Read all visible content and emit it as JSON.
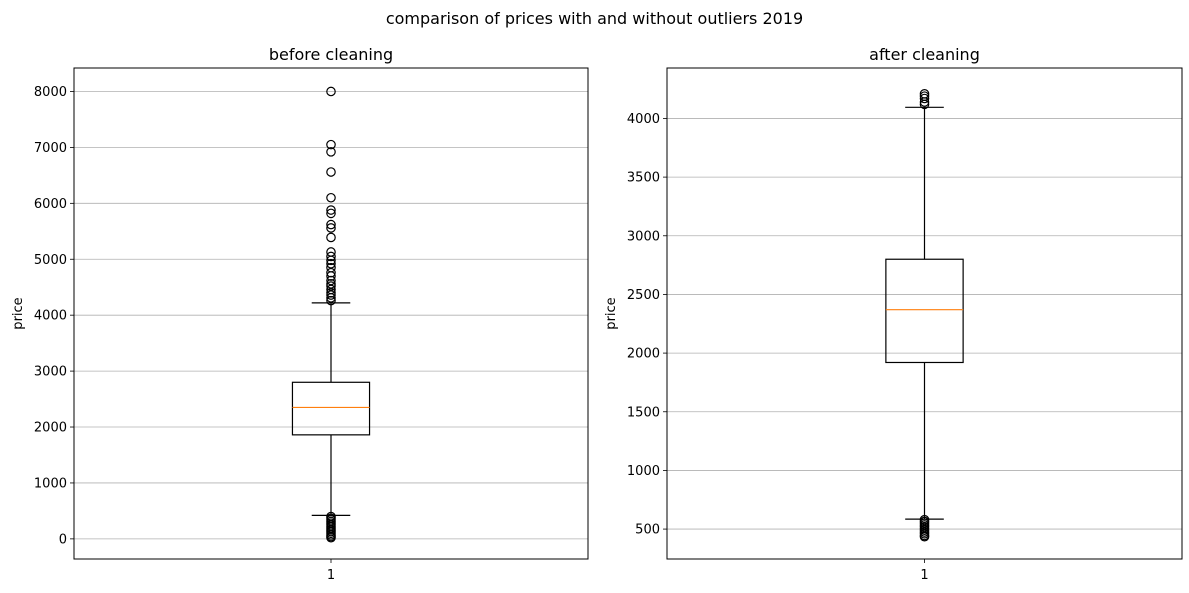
{
  "figure": {
    "suptitle": "comparison of prices with and without outliers 2019"
  },
  "colors": {
    "grid": "#b0b0b0",
    "box": "#000000",
    "median": "#ff7f0e",
    "outlier_edge": "#000000"
  },
  "chart_data": [
    {
      "type": "box",
      "title": "before cleaning",
      "ylabel": "price",
      "xlabel": "",
      "categories": [
        "1"
      ],
      "ylim": [
        -360,
        8420
      ],
      "yticks": [
        0,
        1000,
        2000,
        3000,
        4000,
        5000,
        6000,
        7000,
        8000
      ],
      "ytick_labels": [
        "0",
        "1000",
        "2000",
        "3000",
        "4000",
        "5000",
        "6000",
        "7000",
        "8000"
      ],
      "grid": "y",
      "box": {
        "whisker_low": 420,
        "q1": 1860,
        "median": 2350,
        "q3": 2800,
        "whisker_high": 4220
      },
      "outliers": [
        8000,
        7050,
        6920,
        6560,
        6100,
        5880,
        5820,
        5620,
        5560,
        5390,
        5130,
        5050,
        4980,
        4920,
        4850,
        4760,
        4700,
        4620,
        4560,
        4520,
        4460,
        4400,
        4360,
        4310,
        4260,
        400,
        370,
        340,
        310,
        280,
        250,
        220,
        190,
        160,
        130,
        100,
        70,
        40,
        20
      ]
    },
    {
      "type": "box",
      "title": "after cleaning",
      "ylabel": "price",
      "xlabel": "",
      "categories": [
        "1"
      ],
      "ylim": [
        245,
        4430
      ],
      "yticks": [
        500,
        1000,
        1500,
        2000,
        2500,
        3000,
        3500,
        4000
      ],
      "ytick_labels": [
        "500",
        "1000",
        "1500",
        "2000",
        "2500",
        "3000",
        "3500",
        "4000"
      ],
      "grid": "y",
      "box": {
        "whisker_low": 585,
        "q1": 1920,
        "median": 2370,
        "q3": 2800,
        "whisker_high": 4095
      },
      "outliers": [
        4210,
        4190,
        4170,
        4140,
        4120,
        580,
        565,
        550,
        535,
        520,
        505,
        490,
        475,
        460,
        445,
        435
      ]
    }
  ]
}
